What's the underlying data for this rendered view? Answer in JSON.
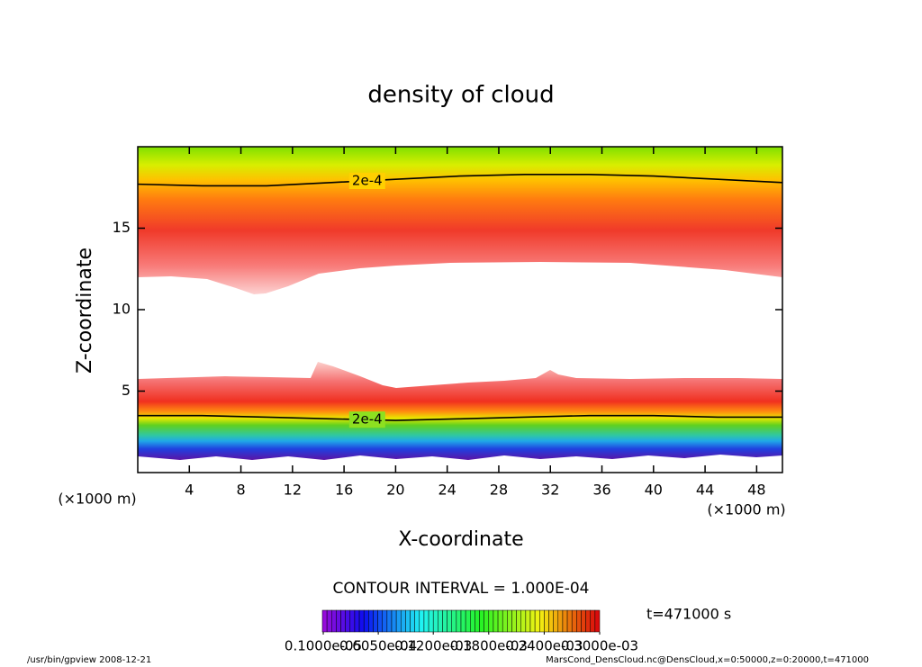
{
  "chart_data": {
    "type": "contour",
    "title": "density of cloud",
    "xlabel": "X-coordinate",
    "ylabel": "Z-coordinate",
    "x_unit": "(×1000 m)",
    "xlim": [
      0,
      50
    ],
    "ylim": [
      0,
      20
    ],
    "xticks": [
      4,
      8,
      12,
      16,
      20,
      24,
      28,
      32,
      36,
      40,
      44,
      48
    ],
    "yticks": [
      5,
      10,
      15
    ],
    "contours": [
      {
        "label": "2e-4",
        "value": 0.0002,
        "color": "#000000",
        "x": [
          0,
          5,
          10,
          15,
          20,
          25,
          30,
          35,
          40,
          45,
          50
        ],
        "y": [
          17.7,
          17.6,
          17.6,
          17.8,
          18.0,
          18.2,
          18.3,
          18.3,
          18.2,
          18.0,
          17.8
        ]
      },
      {
        "label": "2e-4",
        "value": 0.0002,
        "color": "#000000",
        "x": [
          0,
          5,
          10,
          15,
          20,
          25,
          30,
          35,
          40,
          45,
          50
        ],
        "y": [
          3.5,
          3.5,
          3.4,
          3.3,
          3.2,
          3.3,
          3.4,
          3.5,
          3.5,
          3.4,
          3.4
        ]
      }
    ],
    "contour_interval": "CONTOUR INTERVAL = 1.000E-04",
    "time_label": "t=471000 s",
    "clim": [
      0,
      0.0003
    ],
    "cticks": [
      {
        "value": 1e-06,
        "label": "0.1000e-05"
      },
      {
        "value": 6.05e-05,
        "label": "0.6050e-04"
      },
      {
        "value": 0.00012,
        "label": "0.1200e-03"
      },
      {
        "value": 0.00018,
        "label": "0.1800e-03"
      },
      {
        "value": 0.00024,
        "label": "0.2400e-03"
      },
      {
        "value": 0.0003,
        "label": "0.3000e-03"
      }
    ],
    "footer_left": "/usr/bin/gpview  2008-12-21",
    "footer_right": "MarsCond_DensCloud.nc@DensCloud,x=0:50000,z=0:20000,t=471000"
  }
}
